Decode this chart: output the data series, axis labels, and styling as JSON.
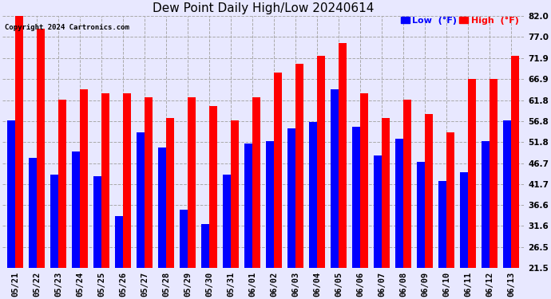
{
  "title": "Dew Point Daily High/Low 20240614",
  "copyright": "Copyright 2024 Cartronics.com",
  "legend_low": "Low  (°F)",
  "legend_high": "High  (°F)",
  "dates": [
    "05/21",
    "05/22",
    "05/23",
    "05/24",
    "05/25",
    "05/26",
    "05/27",
    "05/28",
    "05/29",
    "05/30",
    "05/31",
    "06/01",
    "06/02",
    "06/03",
    "06/04",
    "06/05",
    "06/06",
    "06/07",
    "06/08",
    "06/09",
    "06/10",
    "06/11",
    "06/12",
    "06/13"
  ],
  "high": [
    82.0,
    79.0,
    62.0,
    64.5,
    63.5,
    63.5,
    62.5,
    57.5,
    62.5,
    60.5,
    57.0,
    62.5,
    68.5,
    70.5,
    72.5,
    75.5,
    63.5,
    57.5,
    62.0,
    58.5,
    54.0,
    66.9,
    66.9,
    72.5
  ],
  "low": [
    57.0,
    48.0,
    44.0,
    49.5,
    43.5,
    34.0,
    54.0,
    50.5,
    35.5,
    32.0,
    44.0,
    51.5,
    52.0,
    55.0,
    56.5,
    64.5,
    55.5,
    48.5,
    52.5,
    47.0,
    42.5,
    44.5,
    52.0,
    57.0
  ],
  "ylim_min": 21.5,
  "ylim_max": 82.0,
  "yticks": [
    21.5,
    26.5,
    31.6,
    36.6,
    41.7,
    46.7,
    51.8,
    56.8,
    61.8,
    66.9,
    71.9,
    77.0,
    82.0
  ],
  "bg_color": "#e8e8ff",
  "bar_width": 0.38,
  "high_color": "#ff0000",
  "low_color": "#0000ff",
  "grid_color": "#aaaaaa",
  "title_fontsize": 11,
  "tick_fontsize": 7.5,
  "legend_fontsize": 8,
  "figwidth": 6.9,
  "figheight": 3.75,
  "dpi": 100
}
